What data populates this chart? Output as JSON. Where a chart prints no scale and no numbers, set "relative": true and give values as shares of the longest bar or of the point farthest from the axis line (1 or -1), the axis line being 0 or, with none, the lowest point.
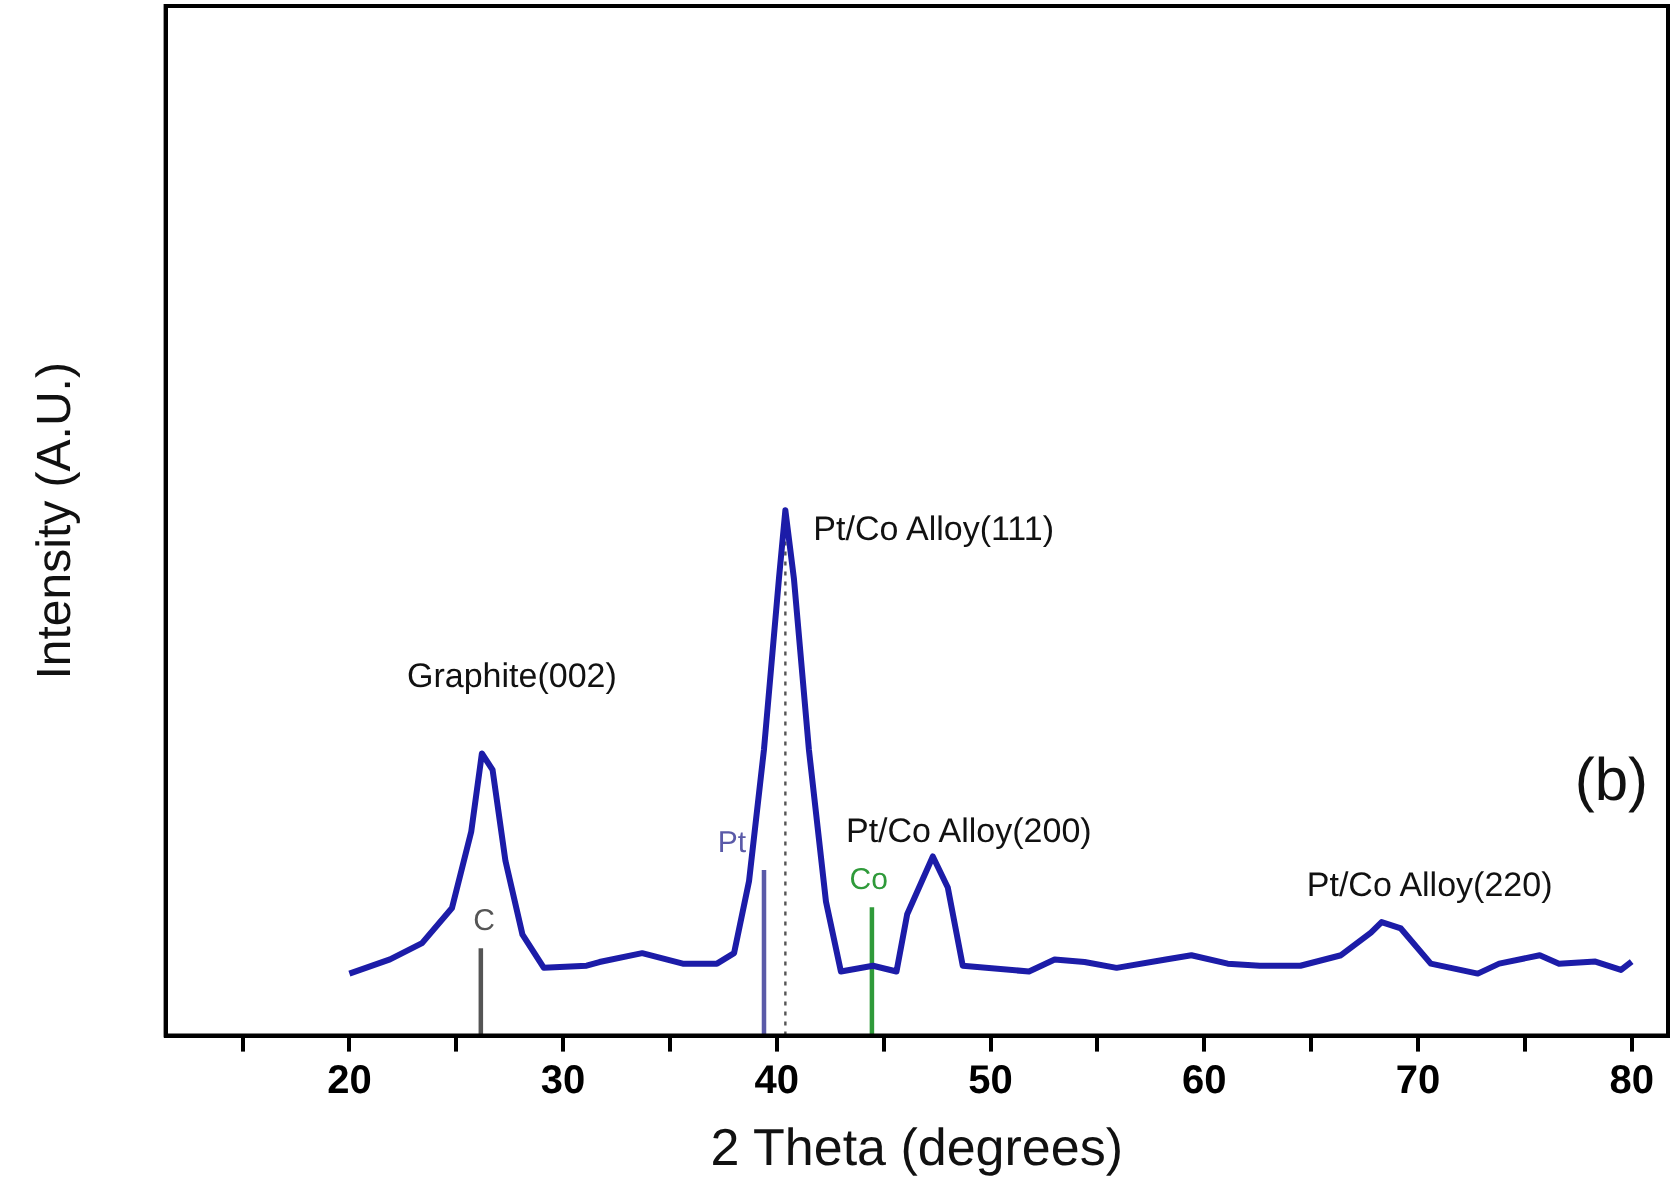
{
  "chart_data": {
    "type": "line",
    "relative": true,
    "xlabel": "2 Theta (degrees)",
    "ylabel": "Intensity (A.U.)",
    "xlim": [
      11.4,
      81.7
    ],
    "xticks": [
      {
        "value": 15,
        "label": null
      },
      20,
      {
        "value": 25,
        "label": null
      },
      30,
      {
        "value": 35,
        "label": null
      },
      40,
      {
        "value": 45,
        "label": null
      },
      50,
      {
        "value": 55,
        "label": null
      },
      60,
      {
        "value": 65,
        "label": null
      },
      70,
      {
        "value": 75,
        "label": null
      },
      80
    ],
    "grid": false,
    "legend": false,
    "marker": "none",
    "line_style": "solid",
    "series": [
      {
        "color": "#1c1ca8",
        "x": [
          20,
          21.9,
          23.4,
          24.8,
          25.7,
          26.2,
          26.7,
          27.3,
          28.1,
          29.1,
          31.1,
          31.7,
          33.7,
          35.6,
          37.2,
          38.0,
          38.7,
          39.4,
          40.1,
          40.4,
          40.8,
          41.5,
          42.3,
          43.0,
          44.5,
          45.6,
          46.1,
          47.3,
          48.0,
          48.7,
          51.8,
          53.0,
          54.4,
          55.9,
          58.2,
          59.4,
          61.1,
          62.6,
          64.5,
          66.4,
          67.8,
          68.3,
          69.2,
          70.6,
          72.8,
          73.8,
          75.7,
          76.6,
          78.3,
          79.5,
          80
        ],
        "values": [
          0.118,
          0.145,
          0.176,
          0.243,
          0.388,
          0.537,
          0.506,
          0.333,
          0.192,
          0.129,
          0.133,
          0.14,
          0.157,
          0.137,
          0.137,
          0.157,
          0.294,
          0.545,
          0.87,
          1,
          0.87,
          0.545,
          0.255,
          0.122,
          0.133,
          0.122,
          0.231,
          0.341,
          0.282,
          0.133,
          0.122,
          0.145,
          0.14,
          0.129,
          0.145,
          0.153,
          0.137,
          0.133,
          0.133,
          0.153,
          0.196,
          0.216,
          0.204,
          0.137,
          0.118,
          0.137,
          0.153,
          0.137,
          0.141,
          0.125,
          0.141
        ]
      },
      {
        "type": "bar",
        "name": "C",
        "color": "#555555",
        "x": [
          26.3
        ],
        "values": [
          0.165
        ]
      },
      {
        "type": "bar",
        "name": "Pt",
        "color": "#5a5aa8",
        "x": [
          39.4
        ],
        "values": [
          0.314
        ]
      },
      {
        "type": "bar",
        "name": "Co",
        "color": "#2f9a3a",
        "x": [
          44.3
        ],
        "values": [
          0.243
        ]
      }
    ],
    "ref_lines": [
      {
        "axis": "x",
        "value": 40.4,
        "label": null,
        "color": "#555555",
        "line_style": "dotted"
      }
    ],
    "annotations": [
      {
        "text": "Graphite(002)",
        "x": 26.2,
        "y": 0.537
      },
      {
        "text": "Pt/Co Alloy(111)",
        "x": 40.4,
        "y": 1
      },
      {
        "text": "Pt/Co Alloy(200)",
        "x": 47.3,
        "y": 0.341
      },
      {
        "text": "Pt/Co Alloy(220)",
        "x": 68.3,
        "y": 0.216
      },
      "(b)"
    ]
  }
}
